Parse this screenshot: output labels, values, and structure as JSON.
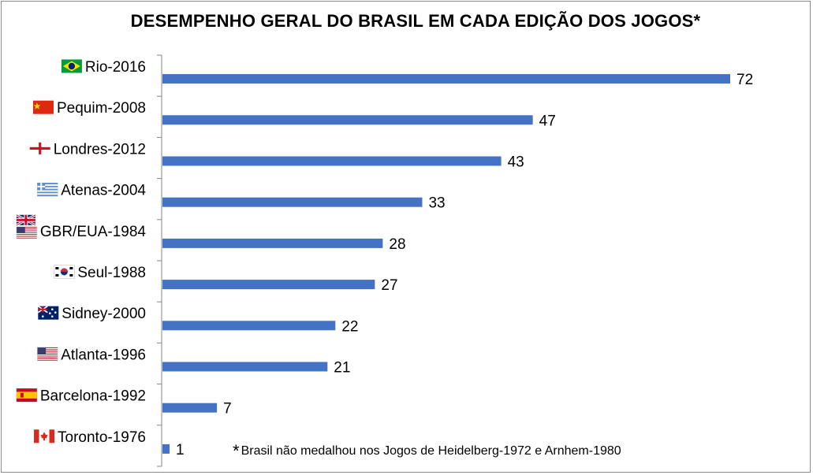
{
  "chart_data": {
    "type": "bar",
    "orientation": "horizontal",
    "title": "DESEMPENHO GERAL DO BRASIL EM CADA EDIÇÃO DOS JOGOS*",
    "categories": [
      "Rio-2016",
      "Pequim-2008",
      "Londres-2012",
      "Atenas-2004",
      "GBR/EUA-1984",
      "Seul-1988",
      "Sidney-2000",
      "Atlanta-1996",
      "Barcelona-1992",
      "Toronto-1976"
    ],
    "values": [
      72,
      47,
      43,
      33,
      28,
      27,
      22,
      21,
      7,
      1
    ],
    "flags": [
      "brazil-flag-icon",
      "china-flag-icon",
      "england-flag-icon",
      "greece-flag-icon",
      "uk-usa-flags-icon",
      "south-korea-flag-icon",
      "australia-flag-icon",
      "usa-flag-icon",
      "spain-flag-icon",
      "canada-flag-icon"
    ],
    "bar_color": "#4472c4",
    "xlim": [
      0,
      72
    ],
    "data_labels": true,
    "grid": false
  },
  "footnote": {
    "star": "*",
    "text": "Brasil não medalhou nos Jogos de Heidelberg-1972 e Arnhem-1980"
  }
}
